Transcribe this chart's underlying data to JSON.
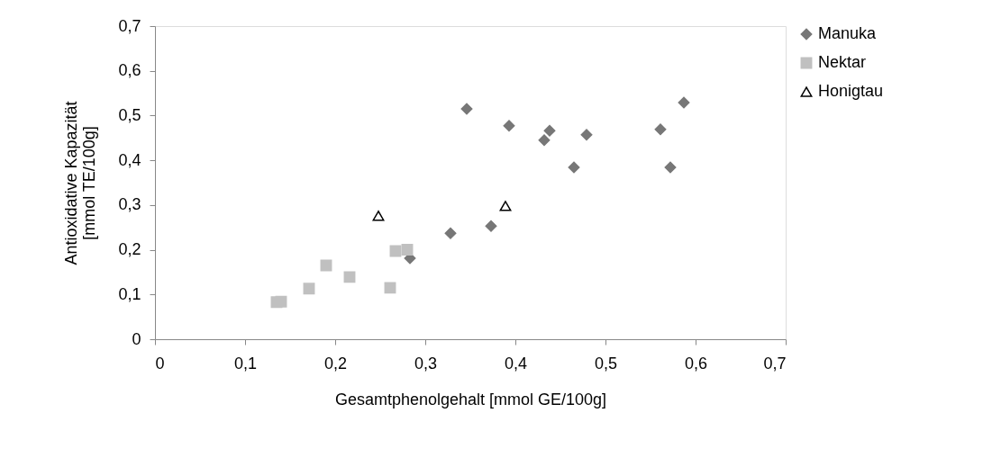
{
  "chart_data": {
    "type": "scatter",
    "xlabel": "Gesamtphenolgehalt [mmol GE/100g]",
    "ylabel": "Antioxidative Kapazität\n[mmol TE/100g]",
    "xlim": [
      0,
      0.7
    ],
    "xticks": [
      {
        "value": 0,
        "label": "0"
      },
      {
        "value": 0.1,
        "label": "0,1"
      },
      {
        "value": 0.2,
        "label": "0,2"
      },
      {
        "value": 0.3,
        "label": "0,3"
      },
      {
        "value": 0.4,
        "label": "0,4"
      },
      {
        "value": 0.5,
        "label": "0,5"
      },
      {
        "value": 0.6,
        "label": "0,6"
      },
      {
        "value": 0.7,
        "label": "0,7"
      }
    ],
    "ylim": [
      0,
      0.7
    ],
    "yticks": [
      {
        "value": 0,
        "label": "0"
      },
      {
        "value": 0.1,
        "label": "0,1"
      },
      {
        "value": 0.2,
        "label": "0,2"
      },
      {
        "value": 0.3,
        "label": "0,3"
      },
      {
        "value": 0.4,
        "label": "0,4"
      },
      {
        "value": 0.5,
        "label": "0,5"
      },
      {
        "value": 0.6,
        "label": "0,6"
      },
      {
        "value": 0.7,
        "label": "0,7"
      }
    ],
    "grid": false,
    "legend": "right",
    "series": [
      {
        "name": "Manuka",
        "color": "#777777",
        "marker": "diamond",
        "x": [
          0.283,
          0.328,
          0.346,
          0.373,
          0.393,
          0.432,
          0.438,
          0.465,
          0.479,
          0.561,
          0.572,
          0.587
        ],
        "values": [
          0.181,
          0.237,
          0.515,
          0.253,
          0.477,
          0.445,
          0.466,
          0.384,
          0.457,
          0.469,
          0.384,
          0.529
        ]
      },
      {
        "name": "Nektar",
        "color": "#c0c0c0",
        "marker": "square",
        "x": [
          0.135,
          0.14,
          0.171,
          0.19,
          0.216,
          0.261,
          0.267,
          0.28
        ],
        "values": [
          0.083,
          0.084,
          0.113,
          0.165,
          0.139,
          0.115,
          0.197,
          0.2
        ]
      },
      {
        "name": "Honigtau",
        "color": "#000000",
        "marker": "triangle",
        "x": [
          0.248,
          0.389
        ],
        "values": [
          0.276,
          0.298
        ]
      }
    ]
  }
}
